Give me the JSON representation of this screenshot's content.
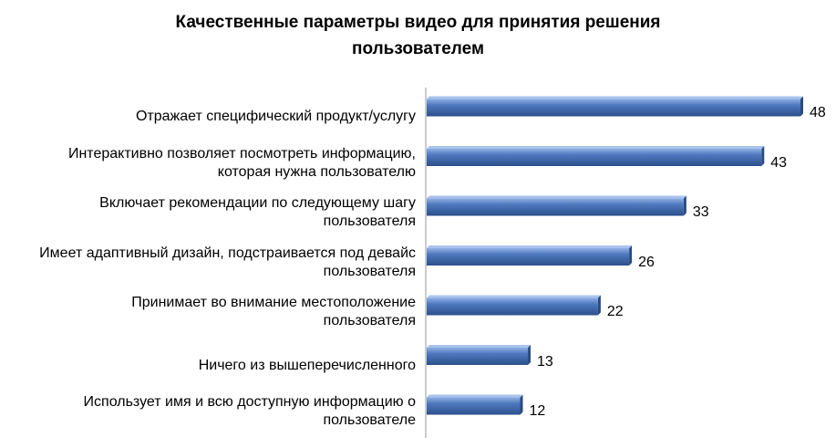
{
  "chart_data": {
    "type": "bar",
    "orientation": "horizontal",
    "title_lines": [
      "Качественные параметры видео для принятия решения",
      "пользователем"
    ],
    "categories": [
      [
        "Отражает специфический продукт/услугу"
      ],
      [
        "Интерактивно позволяет посмотреть информацию,",
        "которая нужна пользователю"
      ],
      [
        "Включает рекомендации по следующему шагу",
        "пользователя"
      ],
      [
        "Имеет адаптивный дизайн, подстраивается под девайс",
        "пользователя"
      ],
      [
        "Принимает во внимание местоположение",
        "пользователя"
      ],
      [
        "Ничего из вышеперечисленного"
      ],
      [
        "Использует имя и всю доступную информацию о",
        "пользователе"
      ]
    ],
    "values": [
      48,
      43,
      33,
      26,
      22,
      13,
      12
    ],
    "xlim": [
      0,
      48
    ],
    "grid": false,
    "legend": "none",
    "bar_color": "#4a72b4"
  }
}
